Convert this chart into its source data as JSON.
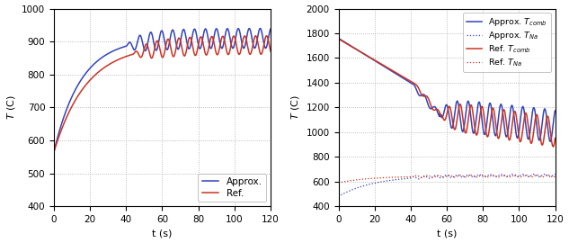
{
  "left": {
    "xlim": [
      0,
      120
    ],
    "ylim": [
      400,
      1000
    ],
    "yticks": [
      400,
      500,
      600,
      700,
      800,
      900,
      1000
    ],
    "xticks": [
      0,
      20,
      40,
      60,
      80,
      100,
      120
    ],
    "xlabel": "t (s)",
    "ylabel": "$T$ (C)",
    "approx_color": "#3344bb",
    "ref_color": "#cc3322",
    "legend_labels": [
      "Approx.",
      "Ref."
    ]
  },
  "right": {
    "xlim": [
      0,
      120
    ],
    "ylim": [
      400,
      2000
    ],
    "yticks": [
      400,
      600,
      800,
      1000,
      1200,
      1400,
      1600,
      1800,
      2000
    ],
    "xticks": [
      0,
      20,
      40,
      60,
      80,
      100,
      120
    ],
    "xlabel": "t (s)",
    "ylabel": "$T$ (C)",
    "approx_comb_color": "#3344bb",
    "ref_comb_color": "#cc3322",
    "na_color_approx": "#8888cc",
    "na_color_ref": "#cc8888",
    "legend_labels": [
      "Approx. $T_{comb}$",
      "Approx. $T_{Na}$",
      "Ref. $T_{comb}$",
      "Ref. $T_{Na}$"
    ]
  }
}
